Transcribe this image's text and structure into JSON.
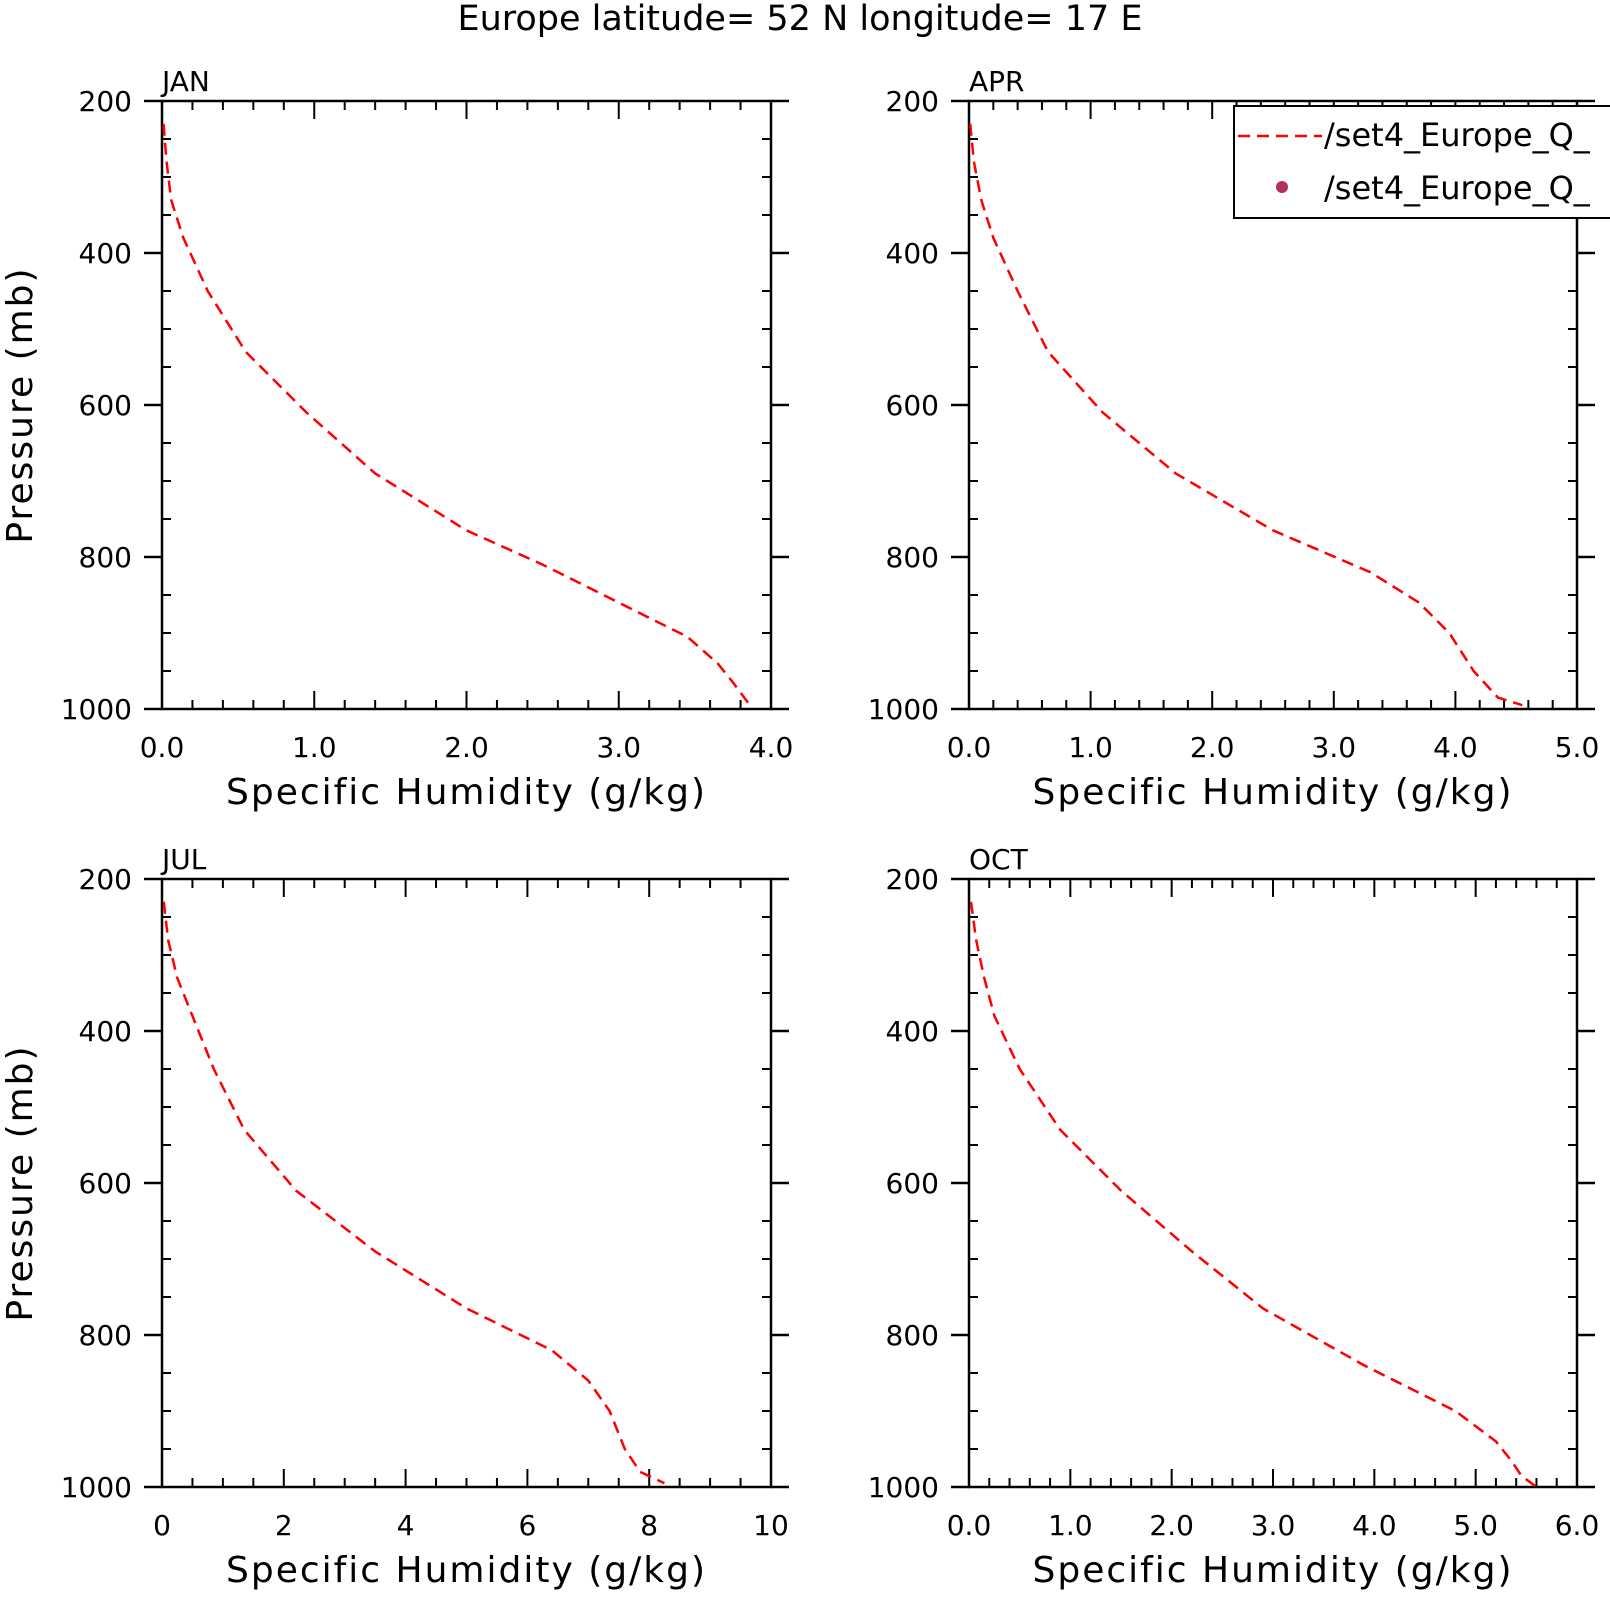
{
  "figure": {
    "title": "Europe  latitude= 52 N longitude= 17 E"
  },
  "legend": {
    "placement": "top-right of APR panel",
    "entries": [
      {
        "label": "/set4_Europe_Q_",
        "style": "dashed-line",
        "color": "#ff0000"
      },
      {
        "label": "/set4_Europe_Q_",
        "style": "dot",
        "color": "#b03060"
      }
    ]
  },
  "colors": {
    "line": "#ff0000",
    "dot": "#b03060",
    "axis": "#000000"
  },
  "chart_data": [
    {
      "type": "line",
      "panel_label": "JAN",
      "xlabel": "Specific Humidity (g/kg)",
      "ylabel": "Pressure (mb)",
      "xlim": [
        0,
        4
      ],
      "ylim": [
        200,
        1000
      ],
      "y_inverted": true,
      "xticks": [
        0,
        1,
        2,
        3,
        4
      ],
      "xtick_labels": [
        "0.0",
        "1.0",
        "2.0",
        "3.0",
        "4.0"
      ],
      "xminor_step": 0.2,
      "yticks": [
        200,
        400,
        600,
        800,
        1000
      ],
      "ytick_labels": [
        "200",
        "400",
        "600",
        "800",
        "1000"
      ],
      "yminor_step": 50,
      "series": [
        {
          "style": "dashed",
          "color": "#ff0000",
          "x": [
            0.01,
            0.03,
            0.06,
            0.14,
            0.3,
            0.55,
            0.95,
            1.4,
            2.0,
            2.5,
            3.0,
            3.45,
            3.65,
            3.75,
            3.85
          ],
          "y": [
            230,
            280,
            330,
            380,
            450,
            530,
            610,
            690,
            765,
            810,
            860,
            905,
            940,
            965,
            992
          ]
        }
      ]
    },
    {
      "type": "line",
      "panel_label": "APR",
      "xlabel": "Specific Humidity (g/kg)",
      "ylabel": "",
      "xlim": [
        0,
        5
      ],
      "ylim": [
        200,
        1000
      ],
      "y_inverted": true,
      "xticks": [
        0,
        1,
        2,
        3,
        4,
        5
      ],
      "xtick_labels": [
        "0.0",
        "1.0",
        "2.0",
        "3.0",
        "4.0",
        "5.0"
      ],
      "xminor_step": 0.2,
      "yticks": [
        200,
        400,
        600,
        800,
        1000
      ],
      "ytick_labels": [
        "200",
        "400",
        "600",
        "800",
        "1000"
      ],
      "yminor_step": 50,
      "series": [
        {
          "style": "dashed",
          "color": "#ff0000",
          "x": [
            0.01,
            0.04,
            0.1,
            0.2,
            0.4,
            0.65,
            1.1,
            1.7,
            2.5,
            3.3,
            3.7,
            3.95,
            4.15,
            4.35,
            4.55
          ],
          "y": [
            230,
            280,
            330,
            380,
            450,
            530,
            610,
            690,
            765,
            820,
            860,
            900,
            950,
            985,
            995
          ]
        }
      ]
    },
    {
      "type": "line",
      "panel_label": "JUL",
      "xlabel": "Specific Humidity (g/kg)",
      "ylabel": "Pressure (mb)",
      "xlim": [
        0,
        10
      ],
      "ylim": [
        200,
        1000
      ],
      "y_inverted": true,
      "xticks": [
        0,
        2,
        4,
        6,
        8,
        10
      ],
      "xtick_labels": [
        "0",
        "2",
        "4",
        "6",
        "8",
        "10"
      ],
      "xminor_step": 0.5,
      "yticks": [
        200,
        400,
        600,
        800,
        1000
      ],
      "ytick_labels": [
        "200",
        "400",
        "600",
        "800",
        "1000"
      ],
      "yminor_step": 50,
      "series": [
        {
          "style": "dashed",
          "color": "#ff0000",
          "x": [
            0.03,
            0.1,
            0.25,
            0.5,
            0.85,
            1.35,
            2.2,
            3.5,
            5.0,
            6.4,
            7.0,
            7.35,
            7.6,
            7.85,
            8.25
          ],
          "y": [
            230,
            280,
            330,
            380,
            450,
            530,
            610,
            690,
            765,
            820,
            860,
            900,
            950,
            980,
            995
          ]
        }
      ]
    },
    {
      "type": "line",
      "panel_label": "OCT",
      "xlabel": "Specific Humidity (g/kg)",
      "ylabel": "",
      "xlim": [
        0,
        6
      ],
      "ylim": [
        200,
        1000
      ],
      "y_inverted": true,
      "xticks": [
        0,
        1,
        2,
        3,
        4,
        5,
        6
      ],
      "xtick_labels": [
        "0.0",
        "1.0",
        "2.0",
        "3.0",
        "4.0",
        "5.0",
        "6.0"
      ],
      "xminor_step": 0.2,
      "yticks": [
        200,
        400,
        600,
        800,
        1000
      ],
      "ytick_labels": [
        "200",
        "400",
        "600",
        "800",
        "1000"
      ],
      "yminor_step": 50,
      "series": [
        {
          "style": "dashed",
          "color": "#ff0000",
          "x": [
            0.02,
            0.07,
            0.15,
            0.25,
            0.5,
            0.9,
            1.5,
            2.2,
            2.9,
            3.9,
            4.8,
            5.2,
            5.35,
            5.45,
            5.6
          ],
          "y": [
            230,
            280,
            330,
            380,
            450,
            530,
            610,
            690,
            765,
            840,
            900,
            940,
            965,
            985,
            1000
          ]
        }
      ]
    }
  ]
}
